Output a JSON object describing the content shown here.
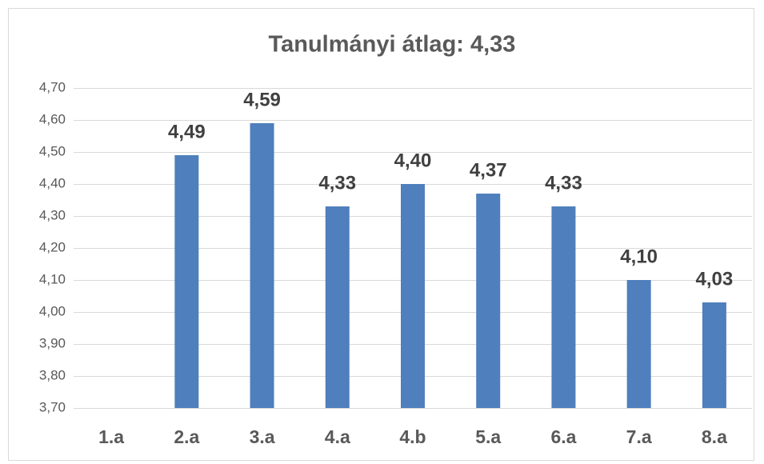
{
  "chart_data": {
    "type": "bar",
    "title": "Tanulmányi átlag: 4,33",
    "categories": [
      "1.a",
      "2.a",
      "3.a",
      "4.a",
      "4.b",
      "5.a",
      "6.a",
      "7.a",
      "8.a"
    ],
    "values": [
      null,
      4.49,
      4.59,
      4.33,
      4.4,
      4.37,
      4.33,
      4.1,
      4.03
    ],
    "value_labels": [
      null,
      "4,49",
      "4,59",
      "4,33",
      "4,40",
      "4,37",
      "4,33",
      "4,10",
      "4,03"
    ],
    "color": "#4f7fbc",
    "ylim": [
      3.7,
      4.7
    ],
    "yticks": [
      {
        "value": 3.7,
        "label": "3,70"
      },
      {
        "value": 3.8,
        "label": "3,80"
      },
      {
        "value": 3.9,
        "label": "3,90"
      },
      {
        "value": 4.0,
        "label": "4,00"
      },
      {
        "value": 4.1,
        "label": "4,10"
      },
      {
        "value": 4.2,
        "label": "4,20"
      },
      {
        "value": 4.3,
        "label": "4,30"
      },
      {
        "value": 4.4,
        "label": "4,40"
      },
      {
        "value": 4.5,
        "label": "4,50"
      },
      {
        "value": 4.6,
        "label": "4,60"
      },
      {
        "value": 4.7,
        "label": "4,70"
      }
    ],
    "grid": true
  }
}
